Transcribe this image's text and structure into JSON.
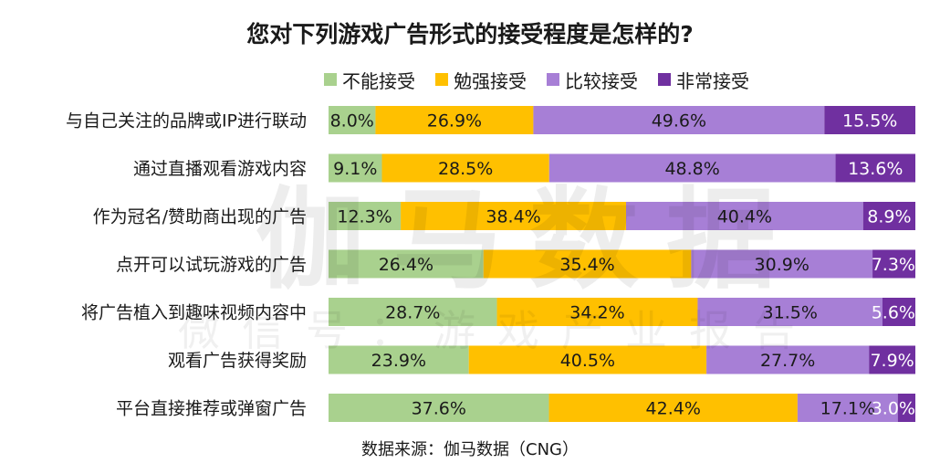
{
  "title": "您对下列游戏广告形式的接受程度是怎样的?",
  "legend": [
    {
      "name": "不能接受",
      "color": "#a9d18e"
    },
    {
      "name": "勉强接受",
      "color": "#ffc000"
    },
    {
      "name": "比较接受",
      "color": "#a77fd6"
    },
    {
      "name": "非常接受",
      "color": "#7030a0"
    }
  ],
  "watermark": {
    "main": "伽马数据",
    "sub": "微信号：游戏产业报告"
  },
  "source": "数据来源：伽马数据（CNG）",
  "chart_data": {
    "type": "bar",
    "orientation": "horizontal",
    "stacked": true,
    "title": "您对下列游戏广告形式的接受程度是怎样的?",
    "xlim": [
      0,
      100
    ],
    "legend_position": "top",
    "categories": [
      "与自己关注的品牌或IP进行联动",
      "通过直播观看游戏内容",
      "作为冠名/赞助商出现的广告",
      "点开可以试玩游戏的广告",
      "将广告植入到趣味视频内容中",
      "观看广告获得奖励",
      "平台直接推荐或弹窗广告"
    ],
    "series": [
      {
        "name": "不能接受",
        "color": "#a9d18e",
        "values": [
          8.0,
          9.1,
          12.3,
          26.4,
          28.7,
          23.9,
          37.6
        ],
        "labels": [
          "8.0%",
          "9.1%",
          "12.3%",
          "26.4%",
          "28.7%",
          "23.9%",
          "37.6%"
        ]
      },
      {
        "name": "勉强接受",
        "color": "#ffc000",
        "values": [
          26.9,
          28.5,
          38.4,
          35.4,
          34.2,
          40.5,
          42.4
        ],
        "labels": [
          "26.9%",
          "28.5%",
          "38.4%",
          "35.4%",
          "34.2%",
          "40.5%",
          "42.4%"
        ]
      },
      {
        "name": "比较接受",
        "color": "#a77fd6",
        "values": [
          49.6,
          48.8,
          40.4,
          30.9,
          31.5,
          27.7,
          17.1
        ],
        "labels": [
          "49.6%",
          "48.8%",
          "40.4%",
          "30.9%",
          "31.5%",
          "27.7%",
          "17.1%"
        ]
      },
      {
        "name": "非常接受",
        "color": "#7030a0",
        "values": [
          15.5,
          13.6,
          8.9,
          7.3,
          5.6,
          7.9,
          3.0
        ],
        "labels": [
          "15.5%",
          "13.6%",
          "8.9%",
          "7.3%",
          "5.6%",
          "7.9%",
          "3.0%"
        ]
      }
    ]
  }
}
